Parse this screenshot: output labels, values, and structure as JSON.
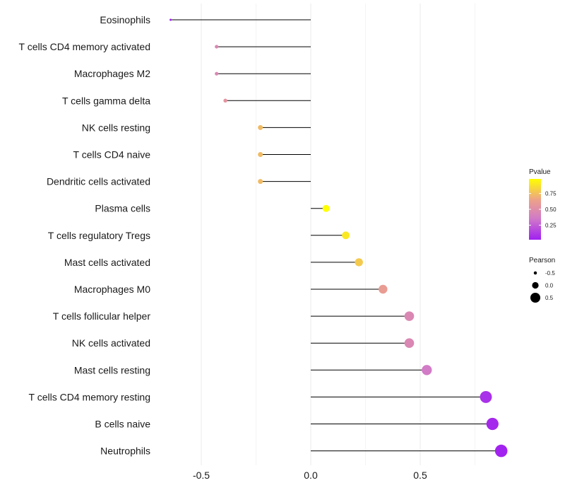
{
  "chart_data": {
    "type": "lollipop",
    "categories": [
      "Eosinophils",
      "T cells CD4 memory activated",
      "Macrophages M2",
      "T cells gamma delta",
      "NK cells resting",
      "T cells CD4 naive",
      "Dendritic cells activated",
      "Plasma cells",
      "T cells regulatory  Tregs",
      "Mast cells activated",
      "Macrophages M0",
      "T cells follicular helper",
      "NK cells activated",
      "Mast cells resting",
      "T cells CD4 memory resting",
      "B cells naive",
      "Neutrophils"
    ],
    "pearson": [
      -0.64,
      -0.43,
      -0.43,
      -0.39,
      -0.23,
      -0.23,
      -0.23,
      0.07,
      0.16,
      0.22,
      0.33,
      0.45,
      0.45,
      0.53,
      0.8,
      0.83,
      0.87
    ],
    "pvalue": [
      0.03,
      0.45,
      0.45,
      0.55,
      0.75,
      0.75,
      0.75,
      0.98,
      0.9,
      0.8,
      0.62,
      0.45,
      0.45,
      0.35,
      0.08,
      0.05,
      0.03
    ],
    "xlim": [
      -0.65,
      0.9
    ],
    "x_ticks": [
      -0.5,
      0.0,
      0.5
    ],
    "x_tick_labels": [
      "-0.5",
      "0.0",
      "0.5"
    ],
    "legend_color": {
      "title": "Pvalue",
      "ticks": [
        0.25,
        0.5,
        0.75
      ],
      "tick_labels": [
        "0.25",
        "0.50",
        "0.75"
      ],
      "range": [
        0.02,
        0.98
      ],
      "colors": [
        "#a020f0",
        "#d17ac8",
        "#eca18a",
        "#ffff00"
      ]
    },
    "legend_size": {
      "title": "Pearson",
      "values": [
        -0.5,
        0.0,
        0.5
      ],
      "labels": [
        "-0.5",
        "0.0",
        "0.5"
      ]
    },
    "title": "",
    "xlabel": "",
    "ylabel": ""
  }
}
